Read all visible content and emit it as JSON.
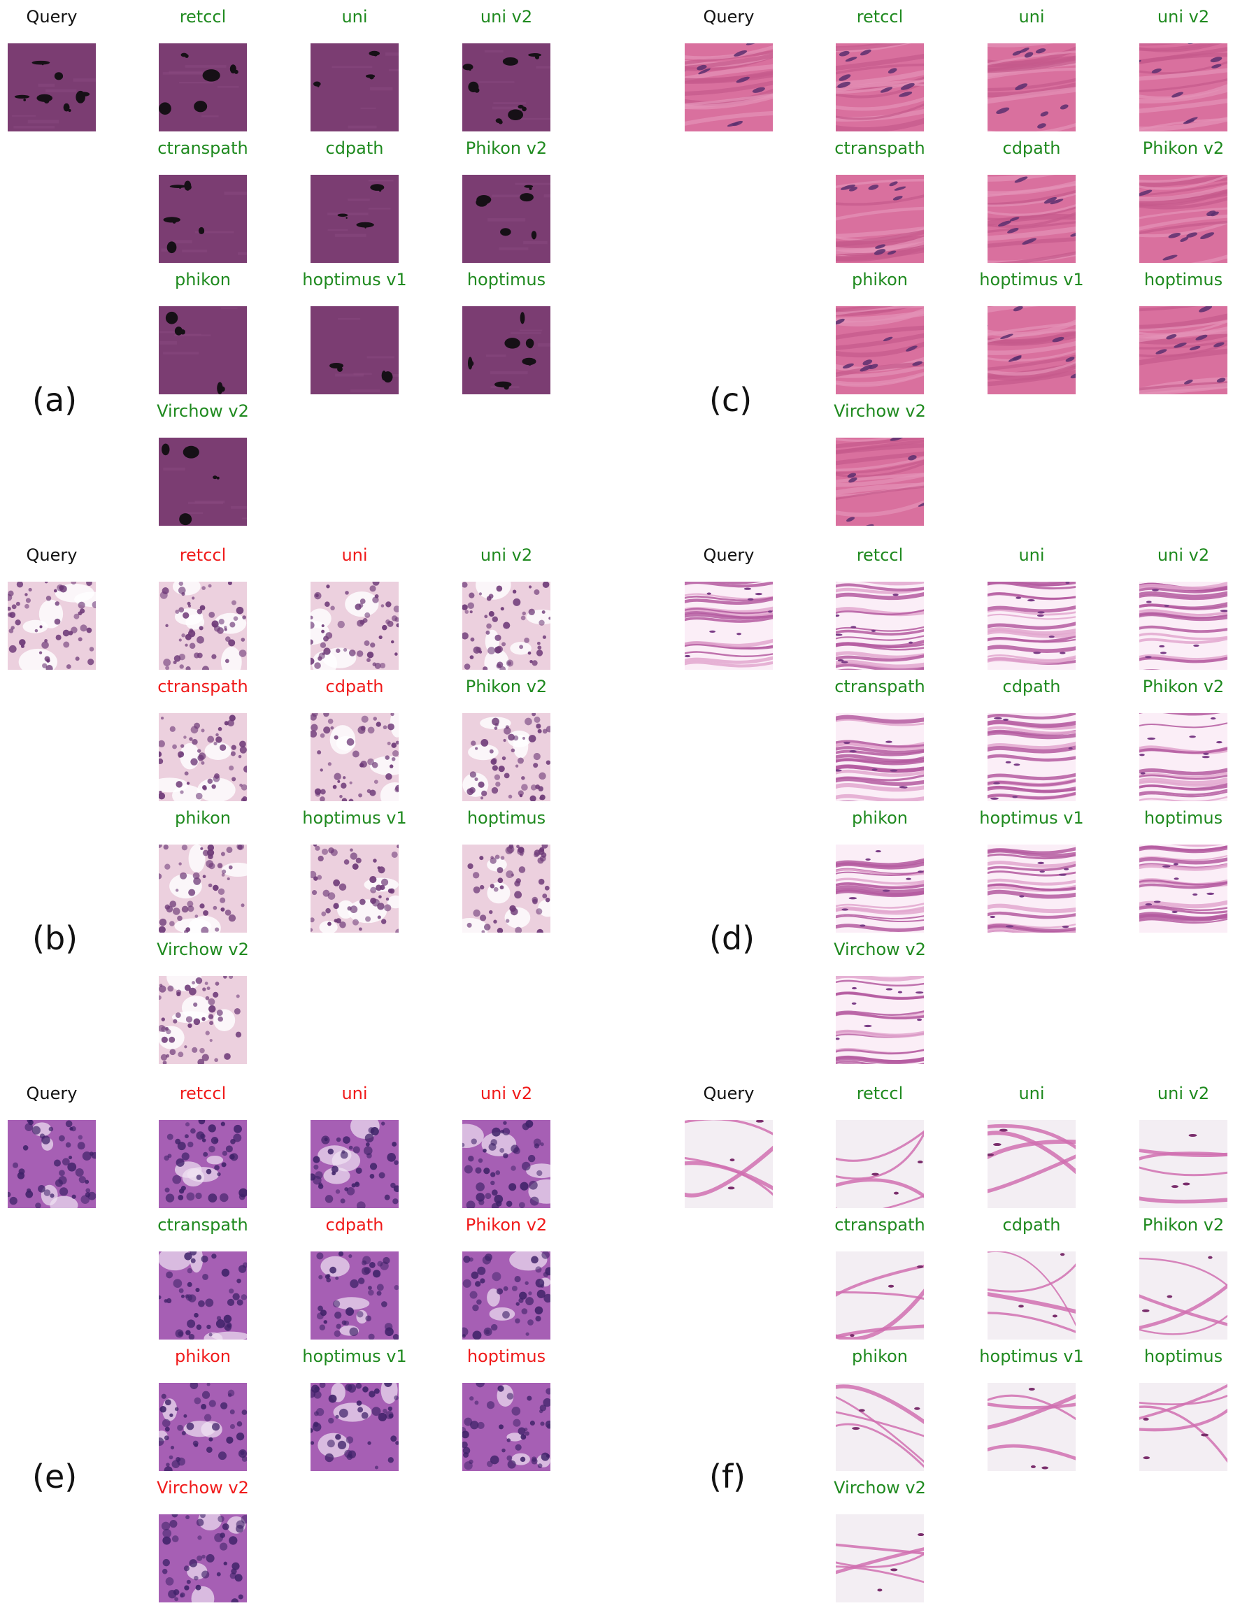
{
  "panels": [
    {
      "label": "(a)",
      "query": "Query",
      "tissue": "dark-purple",
      "results": [
        {
          "model": "retccl",
          "status": "correct"
        },
        {
          "model": "uni",
          "status": "correct"
        },
        {
          "model": "uni v2",
          "status": "correct"
        },
        {
          "model": "ctranspath",
          "status": "correct"
        },
        {
          "model": "cdpath",
          "status": "correct"
        },
        {
          "model": "Phikon v2",
          "status": "correct"
        },
        {
          "model": "phikon",
          "status": "correct"
        },
        {
          "model": "hoptimus v1",
          "status": "correct"
        },
        {
          "model": "hoptimus",
          "status": "correct"
        },
        {
          "model": "Virchow v2",
          "status": "correct"
        }
      ]
    },
    {
      "label": "(c)",
      "query": "Query",
      "tissue": "pink-muscle",
      "results": [
        {
          "model": "retccl",
          "status": "correct"
        },
        {
          "model": "uni",
          "status": "correct"
        },
        {
          "model": "uni v2",
          "status": "correct"
        },
        {
          "model": "ctranspath",
          "status": "correct"
        },
        {
          "model": "cdpath",
          "status": "correct"
        },
        {
          "model": "Phikon v2",
          "status": "correct"
        },
        {
          "model": "phikon",
          "status": "correct"
        },
        {
          "model": "hoptimus v1",
          "status": "correct"
        },
        {
          "model": "hoptimus",
          "status": "correct"
        },
        {
          "model": "Virchow v2",
          "status": "correct"
        }
      ]
    },
    {
      "label": "(b)",
      "query": "Query",
      "tissue": "light-cells",
      "results": [
        {
          "model": "retccl",
          "status": "incorrect"
        },
        {
          "model": "uni",
          "status": "incorrect"
        },
        {
          "model": "uni v2",
          "status": "correct"
        },
        {
          "model": "ctranspath",
          "status": "incorrect"
        },
        {
          "model": "cdpath",
          "status": "incorrect"
        },
        {
          "model": "Phikon v2",
          "status": "correct"
        },
        {
          "model": "phikon",
          "status": "correct"
        },
        {
          "model": "hoptimus v1",
          "status": "correct"
        },
        {
          "model": "hoptimus",
          "status": "correct"
        },
        {
          "model": "Virchow v2",
          "status": "correct"
        }
      ]
    },
    {
      "label": "(d)",
      "query": "Query",
      "tissue": "wavy-stroma",
      "results": [
        {
          "model": "retccl",
          "status": "correct"
        },
        {
          "model": "uni",
          "status": "correct"
        },
        {
          "model": "uni v2",
          "status": "correct"
        },
        {
          "model": "ctranspath",
          "status": "correct"
        },
        {
          "model": "cdpath",
          "status": "correct"
        },
        {
          "model": "Phikon v2",
          "status": "correct"
        },
        {
          "model": "phikon",
          "status": "correct"
        },
        {
          "model": "hoptimus v1",
          "status": "correct"
        },
        {
          "model": "hoptimus",
          "status": "correct"
        },
        {
          "model": "Virchow v2",
          "status": "correct"
        }
      ]
    },
    {
      "label": "(e)",
      "query": "Query",
      "tissue": "violet-dense",
      "results": [
        {
          "model": "retccl",
          "status": "incorrect"
        },
        {
          "model": "uni",
          "status": "incorrect"
        },
        {
          "model": "uni v2",
          "status": "incorrect"
        },
        {
          "model": "ctranspath",
          "status": "correct"
        },
        {
          "model": "cdpath",
          "status": "incorrect"
        },
        {
          "model": "Phikon v2",
          "status": "incorrect"
        },
        {
          "model": "phikon",
          "status": "incorrect"
        },
        {
          "model": "hoptimus v1",
          "status": "correct"
        },
        {
          "model": "hoptimus",
          "status": "incorrect"
        },
        {
          "model": "Virchow v2",
          "status": "incorrect"
        }
      ]
    },
    {
      "label": "(f)",
      "query": "Query",
      "tissue": "adipose",
      "results": [
        {
          "model": "retccl",
          "status": "correct"
        },
        {
          "model": "uni",
          "status": "correct"
        },
        {
          "model": "uni v2",
          "status": "correct"
        },
        {
          "model": "ctranspath",
          "status": "correct"
        },
        {
          "model": "cdpath",
          "status": "correct"
        },
        {
          "model": "Phikon v2",
          "status": "correct"
        },
        {
          "model": "phikon",
          "status": "correct"
        },
        {
          "model": "hoptimus v1",
          "status": "correct"
        },
        {
          "model": "hoptimus",
          "status": "correct"
        },
        {
          "model": "Virchow v2",
          "status": "correct"
        }
      ]
    }
  ],
  "colors": {
    "correct": "#1f8a1f",
    "incorrect": "#f01a1a",
    "query": "#111111"
  }
}
